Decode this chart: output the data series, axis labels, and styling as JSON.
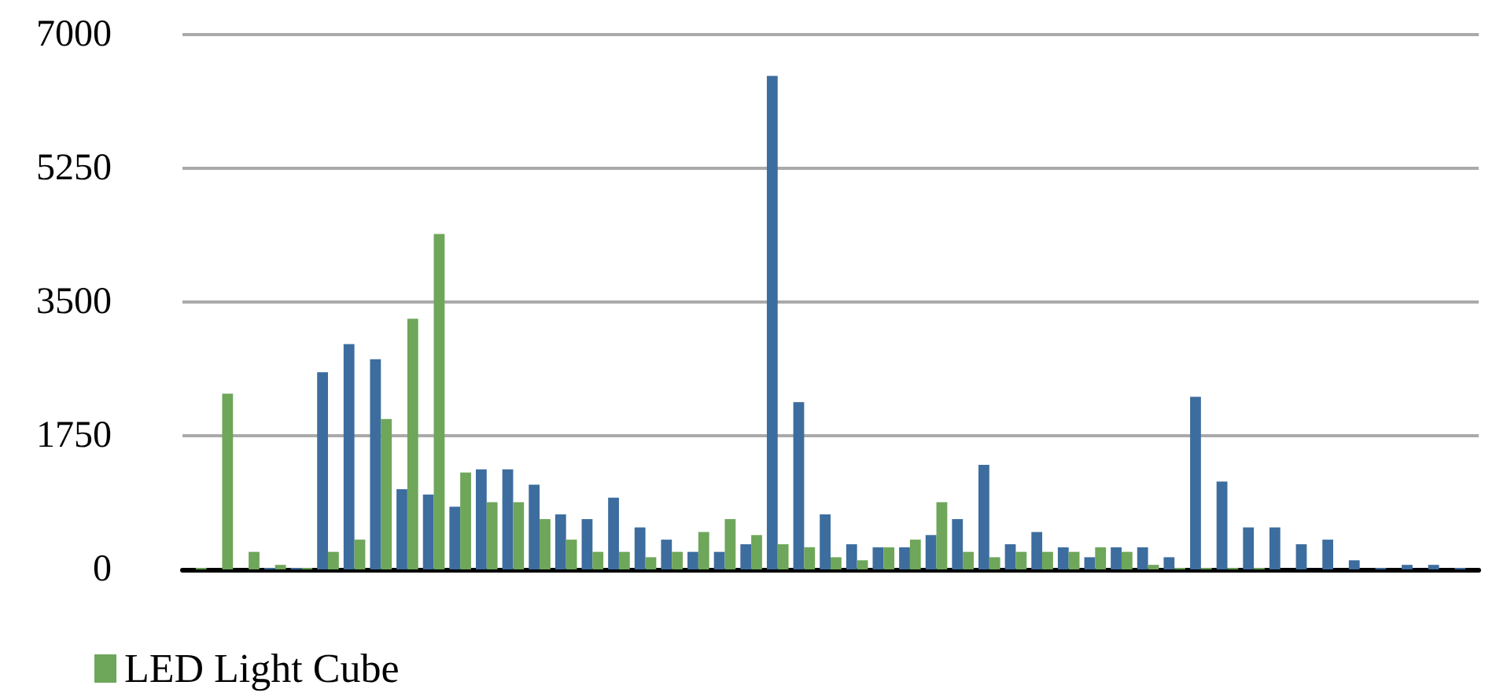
{
  "chart_data": {
    "type": "bar",
    "categories": [
      null,
      null,
      null,
      null,
      null,
      null,
      null,
      null,
      null,
      null,
      null,
      null,
      null,
      null,
      null,
      null,
      null,
      null,
      null,
      null,
      null,
      null,
      null,
      null,
      null,
      null,
      null,
      null,
      null,
      null,
      null,
      null,
      null,
      null,
      null,
      null,
      null,
      null,
      null,
      null,
      null,
      null,
      null,
      null,
      null,
      null,
      null,
      null,
      null
    ],
    "series": [
      {
        "color": "#3d6d9e",
        "values": [
          0,
          0,
          0,
          20,
          20,
          2580,
          2950,
          2750,
          1050,
          980,
          820,
          1310,
          1310,
          1110,
          720,
          660,
          940,
          550,
          390,
          230,
          230,
          330,
          6460,
          2190,
          720,
          330,
          290,
          290,
          450,
          660,
          1370,
          330,
          490,
          290,
          160,
          290,
          290,
          160,
          2260,
          1150,
          550,
          550,
          330,
          390,
          120,
          20,
          60,
          60,
          20
        ]
      },
      {
        "name": "LED Light Cube",
        "color": "#6ea65a",
        "values": [
          20,
          2300,
          230,
          60,
          20,
          230,
          390,
          1970,
          3280,
          4390,
          1270,
          880,
          880,
          660,
          390,
          230,
          230,
          160,
          230,
          490,
          660,
          450,
          330,
          290,
          160,
          120,
          290,
          390,
          880,
          230,
          160,
          230,
          230,
          230,
          290,
          230,
          60,
          20,
          20,
          20,
          20,
          0,
          0,
          0,
          0,
          0,
          0,
          0,
          0
        ]
      }
    ],
    "ylim": [
      0,
      7000
    ],
    "yticks": [
      0,
      1750,
      3500,
      5250,
      7000
    ],
    "grid": "y",
    "legend": "bottom left"
  }
}
